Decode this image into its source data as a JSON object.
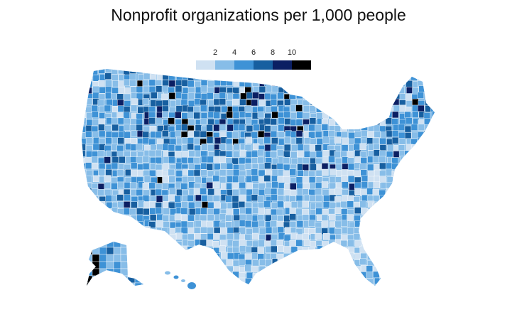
{
  "title": "Nonprofit organizations per 1,000 people",
  "legend": {
    "ticks": [
      "2",
      "4",
      "6",
      "8",
      "10"
    ],
    "colors": [
      "#cfe1f2",
      "#87bde8",
      "#3e92d6",
      "#175fa0",
      "#0b1f63",
      "#000000"
    ]
  },
  "map": {
    "region": "United States counties",
    "fill_colors": [
      "#cfe1f2",
      "#87bde8",
      "#3e92d6",
      "#175fa0",
      "#0b1f63",
      "#000000"
    ],
    "border_color": "#ffffff"
  }
}
